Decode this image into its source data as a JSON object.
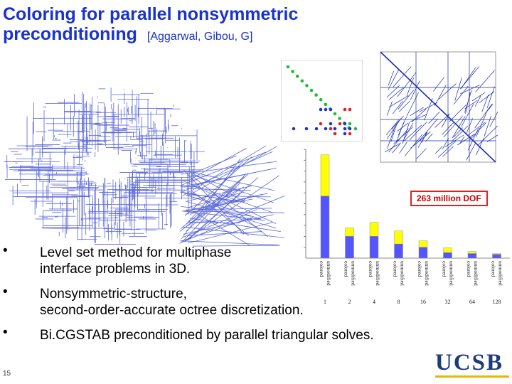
{
  "title": {
    "main_line1": "Coloring for parallel nonsymmetric",
    "main_line2": "preconditioning",
    "authors": "[Aggarwal, Gibou, G]"
  },
  "annotation": "263 million DOF",
  "bullets": [
    "Level set method for multiphase interface problems in 3D.",
    "Nonsymmetric-structure, second-order-accurate octree discretization.",
    "Bi.CGSTAB preconditioned by parallel triangular solves."
  ],
  "bullet_lines": [
    [
      "Level set method for multiphase",
      "interface problems in 3D."
    ],
    [
      "Nonsymmetric-structure,",
      "second-order-accurate octree discretization."
    ],
    [
      "Bi.CGSTAB preconditioned by parallel triangular solves."
    ]
  ],
  "bullet_marker": "•",
  "slide_number": "15",
  "logo_text": "UCSB",
  "colors": {
    "title": "#1a33cc",
    "colored": "#ffff00",
    "unmodified": "#5555ff",
    "dof_border": "#dd2222",
    "logo": "#1e3a7a"
  },
  "chart_data": {
    "type": "bar",
    "categories": [
      "1",
      "2",
      "4",
      "8",
      "16",
      "32",
      "64",
      "128"
    ],
    "bar_labels": [
      "colored",
      "unmodified"
    ],
    "series": [
      {
        "name": "colored",
        "values": [
          9.5,
          2.8,
          3.3,
          2.5,
          1.6,
          0.95,
          0.62,
          0.42
        ]
      },
      {
        "name": "unmodified",
        "values": [
          5.7,
          2.0,
          2.0,
          1.3,
          1.0,
          0.5,
          0.42,
          0.35
        ]
      }
    ]
  }
}
